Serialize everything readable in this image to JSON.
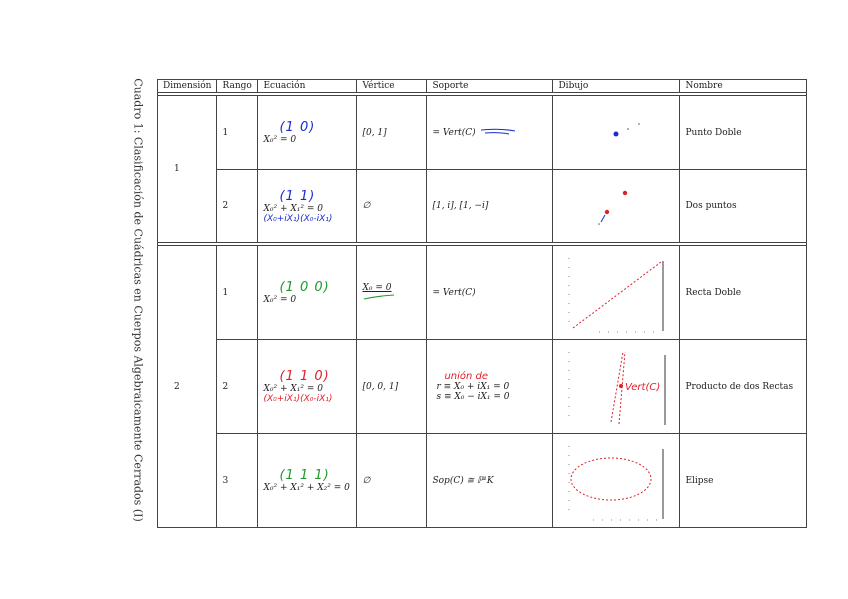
{
  "caption": "Cuadro 1: Clasificación de Cuádricas en Cuerpos Algebraicamente Cerrados (I)",
  "headers": [
    "Dimensión",
    "Rango",
    "Ecuación",
    "Vértice",
    "Soporte",
    "Dibujo",
    "Nombre"
  ],
  "rows": [
    {
      "dimension": "1",
      "rango": "1",
      "ecuacion": "X₀² = 0",
      "matrix_note": "(1 0)",
      "vertice": "[0, 1]",
      "soporte": "= Vert(C)",
      "nombre": "Punto Doble"
    },
    {
      "dimension": "",
      "rango": "2",
      "ecuacion": "X₀² + X₁² = 0",
      "matrix_note": "(1 1)",
      "factor_note": "(X₀+iX₁)(X₀-iX₁)",
      "vertice": "∅",
      "soporte": "[1, i], [1, −i]",
      "nombre": "Dos puntos"
    },
    {
      "dimension": "2",
      "rango": "1",
      "ecuacion": "X₀² = 0",
      "matrix_note": "(1 0 0)",
      "vertice": "X₀ = 0",
      "soporte": "= Vert(C)",
      "nombre": "Recta Doble"
    },
    {
      "dimension": "",
      "rango": "2",
      "ecuacion": "X₀² + X₁² = 0",
      "matrix_note": "(1 1 0)",
      "factor_note": "(X₀+iX₁)(X₀-iX₁)",
      "vertice": "[0, 0, 1]",
      "soporte_note": "unión de",
      "soporte_r": "r ≡ X₀ + iX₁ = 0",
      "soporte_s": "s ≡ X₀ − iX₁ = 0",
      "drawing_note": "Vert(C)",
      "nombre": "Producto de dos Rectas"
    },
    {
      "dimension": "",
      "rango": "3",
      "ecuacion": "X₀² + X₁² + X₂² = 0",
      "matrix_note": "(1 1 1)",
      "vertice": "∅",
      "soporte": "Sop(C) ≅ ℙ¹K",
      "nombre": "Elipse"
    }
  ]
}
